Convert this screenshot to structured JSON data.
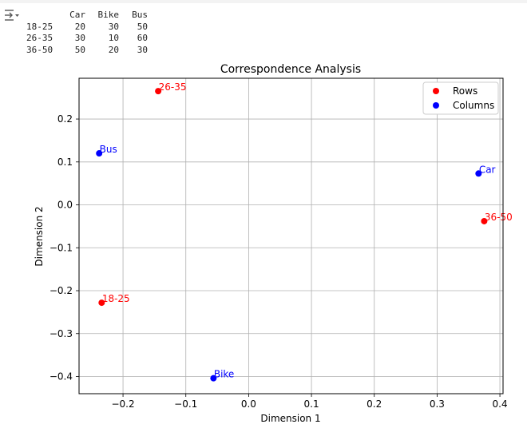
{
  "output_table": {
    "columns": [
      "Car",
      "Bike",
      "Bus"
    ],
    "rows": [
      {
        "label": "18-25",
        "values": [
          "20",
          "30",
          "50"
        ]
      },
      {
        "label": "26-35",
        "values": [
          "30",
          "10",
          "60"
        ]
      },
      {
        "label": "36-50",
        "values": [
          "50",
          "20",
          "30"
        ]
      }
    ]
  },
  "chart_data": {
    "type": "scatter",
    "title": "Correspondence Analysis",
    "xlabel": "Dimension 1",
    "ylabel": "Dimension 2",
    "xlim": [
      -0.27,
      0.405
    ],
    "ylim": [
      -0.44,
      0.295
    ],
    "xticks": [
      -0.2,
      -0.1,
      0.0,
      0.1,
      0.2,
      0.3,
      0.4
    ],
    "xtick_labels": [
      "−0.2",
      "−0.1",
      "0.0",
      "0.1",
      "0.2",
      "0.3",
      "0.4"
    ],
    "yticks": [
      0.2,
      0.1,
      0.0,
      -0.1,
      -0.2,
      -0.3,
      -0.4
    ],
    "ytick_labels": [
      "0.2",
      "0.1",
      "0.0",
      "−0.1",
      "−0.2",
      "−0.3",
      "−0.4"
    ],
    "grid": true,
    "legend_position": "top-right",
    "series": [
      {
        "name": "Rows",
        "color": "#ff0000",
        "points": [
          {
            "label": "18-25",
            "x": -0.234,
            "y": -0.228
          },
          {
            "label": "26-35",
            "x": -0.144,
            "y": 0.265
          },
          {
            "label": "36-50",
            "x": 0.375,
            "y": -0.038
          }
        ]
      },
      {
        "name": "Columns",
        "color": "#0000ff",
        "points": [
          {
            "label": "Car",
            "x": 0.366,
            "y": 0.073
          },
          {
            "label": "Bike",
            "x": -0.056,
            "y": -0.404
          },
          {
            "label": "Bus",
            "x": -0.238,
            "y": 0.12
          }
        ]
      }
    ]
  }
}
